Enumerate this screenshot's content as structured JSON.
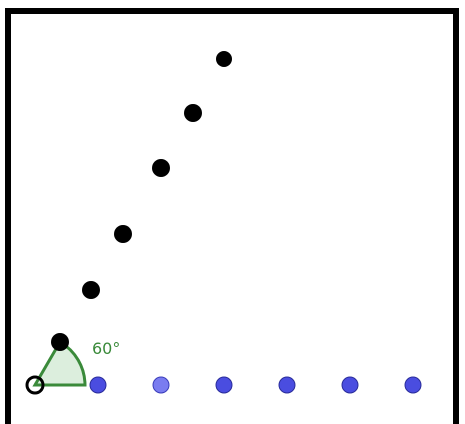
{
  "angle": {
    "label": "60°",
    "color": "#3a8a3a",
    "fill": "#dceedd"
  },
  "colors": {
    "black_point": "#000000",
    "blue_point": "#4a4de0",
    "blue_point_light": "#7a7cf0",
    "origin_stroke": "#000000",
    "frame": "#000000"
  }
}
